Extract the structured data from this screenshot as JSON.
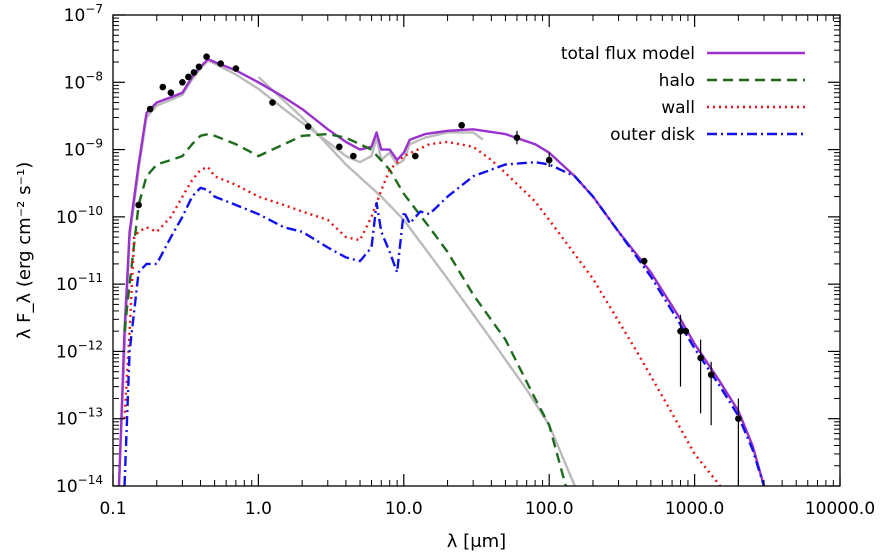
{
  "chart_data": {
    "type": "line",
    "title": "",
    "xlabel": "λ [μm]",
    "ylabel": "λ F_λ (erg cm⁻² s⁻¹)",
    "xscale": "log",
    "yscale": "log",
    "xlim": [
      0.1,
      10000
    ],
    "ylim": [
      1e-14,
      1e-07
    ],
    "x_ticks": [
      {
        "value": 0.1,
        "label": "0.1"
      },
      {
        "value": 1,
        "label": "1.0"
      },
      {
        "value": 10,
        "label": "10.0"
      },
      {
        "value": 100,
        "label": "100.0"
      },
      {
        "value": 1000,
        "label": "1000.0"
      },
      {
        "value": 10000,
        "label": "10000.0"
      }
    ],
    "y_ticks": [
      {
        "value": 1e-14,
        "base": "10",
        "exp": "−14"
      },
      {
        "value": 1e-13,
        "base": "10",
        "exp": "−13"
      },
      {
        "value": 1e-12,
        "base": "10",
        "exp": "−12"
      },
      {
        "value": 1e-11,
        "base": "10",
        "exp": "−11"
      },
      {
        "value": 1e-10,
        "base": "10",
        "exp": "−10"
      },
      {
        "value": 1e-09,
        "base": "10",
        "exp": "−9"
      },
      {
        "value": 1e-08,
        "base": "10",
        "exp": "−8"
      },
      {
        "value": 1e-07,
        "base": "10",
        "exp": "−7"
      }
    ],
    "grid": false,
    "legend_position": "top-right",
    "series": [
      {
        "name": "total flux model",
        "color": "#9932CC",
        "style": "solid",
        "points": [
          [
            0.11,
            1e-14
          ],
          [
            0.12,
            2e-12
          ],
          [
            0.13,
            6e-11
          ],
          [
            0.15,
            6e-10
          ],
          [
            0.17,
            3.5e-09
          ],
          [
            0.2,
            5e-09
          ],
          [
            0.25,
            6e-09
          ],
          [
            0.3,
            7e-09
          ],
          [
            0.35,
            1.2e-08
          ],
          [
            0.4,
            1.7e-08
          ],
          [
            0.45,
            2.2e-08
          ],
          [
            0.5,
            2e-08
          ],
          [
            0.7,
            1.5e-08
          ],
          [
            1,
            1e-08
          ],
          [
            1.5,
            6e-09
          ],
          [
            2,
            4e-09
          ],
          [
            3,
            2e-09
          ],
          [
            4,
            1.3e-09
          ],
          [
            5,
            1e-09
          ],
          [
            6,
            1.1e-09
          ],
          [
            6.5,
            1.8e-09
          ],
          [
            7,
            1e-09
          ],
          [
            8,
            1e-09
          ],
          [
            9,
            7e-10
          ],
          [
            10,
            9e-10
          ],
          [
            11,
            1.4e-09
          ],
          [
            14,
            1.7e-09
          ],
          [
            20,
            1.9e-09
          ],
          [
            30,
            2e-09
          ],
          [
            50,
            1.7e-09
          ],
          [
            80,
            1.2e-09
          ],
          [
            100,
            9e-10
          ],
          [
            150,
            4e-10
          ],
          [
            200,
            2e-10
          ],
          [
            300,
            6e-11
          ],
          [
            500,
            1.5e-11
          ],
          [
            800,
            3e-12
          ],
          [
            1000,
            1.3e-12
          ],
          [
            1500,
            3.5e-13
          ],
          [
            2000,
            1.3e-13
          ],
          [
            2500,
            4e-14
          ],
          [
            3000,
            1e-14
          ]
        ]
      },
      {
        "name": "halo",
        "color": "#1E6B1E",
        "style": "dashed",
        "points": [
          [
            0.12,
            2e-12
          ],
          [
            0.13,
            1e-11
          ],
          [
            0.15,
            1.5e-10
          ],
          [
            0.17,
            4e-10
          ],
          [
            0.2,
            6e-10
          ],
          [
            0.25,
            7e-10
          ],
          [
            0.3,
            8e-10
          ],
          [
            0.35,
            1.2e-09
          ],
          [
            0.4,
            1.6e-09
          ],
          [
            0.45,
            1.7e-09
          ],
          [
            0.5,
            1.6e-09
          ],
          [
            0.7,
            1.2e-09
          ],
          [
            1,
            8e-10
          ],
          [
            1.5,
            1.2e-09
          ],
          [
            2,
            1.6e-09
          ],
          [
            3,
            1.7e-09
          ],
          [
            4,
            1.5e-09
          ],
          [
            6,
            1e-09
          ],
          [
            8,
            5e-10
          ],
          [
            10,
            2.2e-10
          ],
          [
            15,
            7e-11
          ],
          [
            20,
            3e-11
          ],
          [
            30,
            7e-12
          ],
          [
            50,
            1.5e-12
          ],
          [
            80,
            2e-13
          ],
          [
            100,
            8e-14
          ],
          [
            130,
            1e-14
          ]
        ]
      },
      {
        "name": "wall",
        "color": "#EE1111",
        "style": "dotted",
        "points": [
          [
            0.12,
            1e-13
          ],
          [
            0.13,
            2e-12
          ],
          [
            0.14,
            5e-11
          ],
          [
            0.15,
            6e-11
          ],
          [
            0.17,
            7e-11
          ],
          [
            0.2,
            6e-11
          ],
          [
            0.25,
            1e-10
          ],
          [
            0.3,
            2e-10
          ],
          [
            0.35,
            3.5e-10
          ],
          [
            0.4,
            5e-10
          ],
          [
            0.45,
            5.5e-10
          ],
          [
            0.5,
            4e-10
          ],
          [
            0.7,
            3e-10
          ],
          [
            1,
            2e-10
          ],
          [
            1.5,
            1.5e-10
          ],
          [
            2,
            1.2e-10
          ],
          [
            3,
            9e-11
          ],
          [
            4,
            5e-11
          ],
          [
            5,
            4.5e-11
          ],
          [
            6,
            1e-10
          ],
          [
            7,
            2.5e-10
          ],
          [
            8,
            5e-10
          ],
          [
            10,
            8e-10
          ],
          [
            15,
            1.2e-09
          ],
          [
            20,
            1.3e-09
          ],
          [
            30,
            1.1e-09
          ],
          [
            40,
            7e-10
          ],
          [
            50,
            4.5e-10
          ],
          [
            80,
            1.7e-10
          ],
          [
            100,
            9e-11
          ],
          [
            200,
            1.2e-11
          ],
          [
            400,
            1e-12
          ],
          [
            700,
            1.2e-13
          ],
          [
            1000,
            3e-14
          ],
          [
            1500,
            1e-14
          ]
        ]
      },
      {
        "name": "outer disk",
        "color": "#1111EE",
        "style": "dashdot",
        "points": [
          [
            0.12,
            1e-14
          ],
          [
            0.13,
            1e-12
          ],
          [
            0.15,
            1.5e-11
          ],
          [
            0.17,
            2e-11
          ],
          [
            0.2,
            2e-11
          ],
          [
            0.25,
            5e-11
          ],
          [
            0.3,
            1e-10
          ],
          [
            0.35,
            2e-10
          ],
          [
            0.4,
            2.7e-10
          ],
          [
            0.45,
            2.5e-10
          ],
          [
            0.5,
            2e-10
          ],
          [
            0.7,
            1.5e-10
          ],
          [
            1,
            1.1e-10
          ],
          [
            1.5,
            7e-11
          ],
          [
            2,
            6e-11
          ],
          [
            3,
            3.5e-11
          ],
          [
            4,
            2.5e-11
          ],
          [
            5,
            2.2e-11
          ],
          [
            6,
            3.5e-11
          ],
          [
            6.5,
            1.6e-10
          ],
          [
            7,
            6e-11
          ],
          [
            8,
            3e-11
          ],
          [
            9,
            1.5e-11
          ],
          [
            10,
            1.2e-10
          ],
          [
            11,
            8e-11
          ],
          [
            13,
            1.2e-10
          ],
          [
            15,
            1.1e-10
          ],
          [
            20,
            2e-10
          ],
          [
            30,
            4e-10
          ],
          [
            50,
            6e-10
          ],
          [
            80,
            6.5e-10
          ],
          [
            100,
            6e-10
          ],
          [
            150,
            4e-10
          ],
          [
            200,
            2e-10
          ],
          [
            300,
            6e-11
          ],
          [
            500,
            1.3e-11
          ],
          [
            800,
            2.5e-12
          ],
          [
            1000,
            1.1e-12
          ],
          [
            1500,
            3e-13
          ],
          [
            2000,
            1.1e-13
          ],
          [
            2500,
            3.5e-14
          ],
          [
            3000,
            1e-14
          ]
        ]
      },
      {
        "name": "",
        "color": "#BBBBBB",
        "style": "solid",
        "points": [
          [
            0.11,
            1e-14
          ],
          [
            0.12,
            1e-12
          ],
          [
            0.13,
            5e-11
          ],
          [
            0.15,
            5e-10
          ],
          [
            0.17,
            3e-09
          ],
          [
            0.2,
            4.5e-09
          ],
          [
            0.25,
            5.5e-09
          ],
          [
            0.3,
            6.5e-09
          ],
          [
            0.35,
            1.1e-08
          ],
          [
            0.4,
            1.6e-08
          ],
          [
            0.45,
            2.1e-08
          ],
          [
            0.5,
            1.9e-08
          ],
          [
            0.7,
            1.3e-08
          ],
          [
            1,
            8e-09
          ],
          [
            1.5,
            4e-09
          ],
          [
            2,
            2.5e-09
          ],
          [
            3,
            1.3e-09
          ],
          [
            4,
            8e-10
          ],
          [
            5,
            6.5e-10
          ],
          [
            6,
            8e-10
          ],
          [
            6.5,
            1.5e-09
          ],
          [
            7,
            7e-10
          ],
          [
            8,
            9e-10
          ],
          [
            9,
            6e-10
          ],
          [
            10,
            7e-10
          ],
          [
            11,
            1.2e-09
          ],
          [
            14,
            1.5e-09
          ],
          [
            20,
            1.8e-09
          ],
          [
            30,
            1.8e-09
          ],
          [
            35,
            1.4e-09
          ]
        ]
      },
      {
        "name": "",
        "color": "#BBBBBB",
        "style": "solid",
        "points": [
          [
            1,
            1.2e-08
          ],
          [
            2,
            3e-09
          ],
          [
            4,
            6e-10
          ],
          [
            7,
            2e-10
          ],
          [
            10,
            9e-11
          ],
          [
            20,
            1.2e-11
          ],
          [
            40,
            1.5e-12
          ],
          [
            70,
            2.7e-13
          ],
          [
            100,
            8e-14
          ],
          [
            150,
            1e-14
          ]
        ]
      }
    ],
    "data_points": [
      {
        "x": 0.15,
        "y": 1.5e-10
      },
      {
        "x": 0.18,
        "y": 4e-09
      },
      {
        "x": 0.22,
        "y": 8.5e-09
      },
      {
        "x": 0.25,
        "y": 7e-09
      },
      {
        "x": 0.3,
        "y": 1e-08
      },
      {
        "x": 0.33,
        "y": 1.2e-08
      },
      {
        "x": 0.36,
        "y": 1.4e-08
      },
      {
        "x": 0.39,
        "y": 1.7e-08
      },
      {
        "x": 0.44,
        "y": 2.4e-08
      },
      {
        "x": 0.55,
        "y": 1.9e-08
      },
      {
        "x": 0.7,
        "y": 1.6e-08
      },
      {
        "x": 1.25,
        "y": 5e-09
      },
      {
        "x": 2.2,
        "y": 2.2e-09
      },
      {
        "x": 3.6,
        "y": 1.1e-09
      },
      {
        "x": 4.5,
        "y": 8e-10
      },
      {
        "x": 12,
        "y": 8e-10
      },
      {
        "x": 25,
        "y": 2.3e-09
      },
      {
        "x": 60,
        "y": 1.5e-09,
        "err": [
          1.2e-09,
          1.9e-09
        ]
      },
      {
        "x": 100,
        "y": 7e-10,
        "err": [
          5.5e-10,
          9e-10
        ]
      },
      {
        "x": 450,
        "y": 2.2e-11
      },
      {
        "x": 800,
        "y": 2e-12,
        "err": [
          3e-13,
          3.5e-12
        ]
      },
      {
        "x": 870,
        "y": 2e-12
      },
      {
        "x": 1100,
        "y": 8e-13,
        "err": [
          1.2e-13,
          1.5e-12
        ]
      },
      {
        "x": 1300,
        "y": 4.5e-13,
        "err": [
          8e-14,
          7e-13
        ]
      },
      {
        "x": 2000,
        "y": 1e-13,
        "err": [
          1e-14,
          2e-13
        ]
      }
    ]
  }
}
